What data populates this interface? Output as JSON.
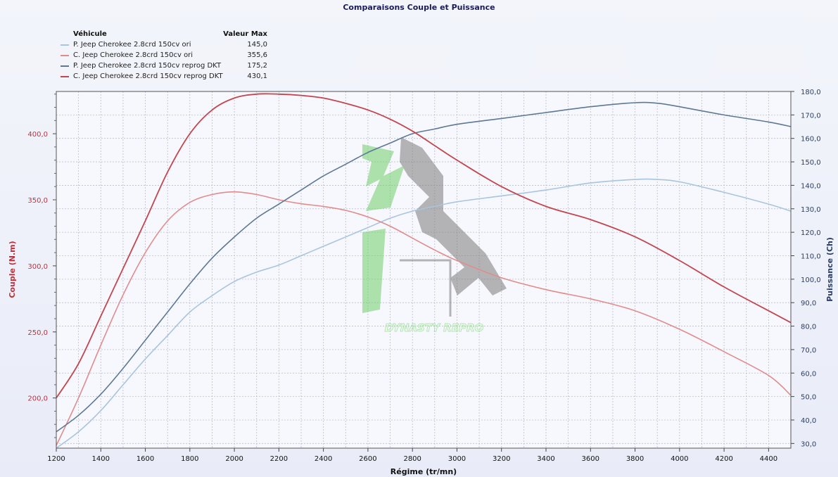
{
  "chart_data": {
    "type": "line",
    "title": "Comparaisons Couple et Puissance",
    "xlabel": "Régime (tr/mn)",
    "ylabel_left": "Couple (N.m)",
    "ylabel_right": "Puissance (Ch)",
    "xlim": [
      1200,
      4500
    ],
    "ylim_left": [
      162,
      432
    ],
    "ylim_right": [
      28,
      180
    ],
    "x_ticks": [
      "1200",
      "1400",
      "1600",
      "1800",
      "2000",
      "2200",
      "2400",
      "2600",
      "2800",
      "3000",
      "3200",
      "3400",
      "3600",
      "3800",
      "4000",
      "4200",
      "4400"
    ],
    "y_left_ticks": [
      "200,0",
      "250,0",
      "300,0",
      "350,0",
      "400,0"
    ],
    "y_right_ticks": [
      "30,0",
      "40,0",
      "50,0",
      "60,0",
      "70,0",
      "80,0",
      "90,0",
      "100,0",
      "110,0",
      "120,0",
      "130,0",
      "140,0",
      "150,0",
      "160,0",
      "170,0",
      "180,0"
    ],
    "legend": {
      "header_vehicle": "Véhicule",
      "header_value": "Valeur Max",
      "entries": [
        {
          "label": "P. Jeep Cherokee 2.8crd 150cv ori",
          "value": "145,0",
          "color": "#a8c4e0"
        },
        {
          "label": "C. Jeep Cherokee 2.8crd 150cv ori",
          "value": "355,6",
          "color": "#e28b8b"
        },
        {
          "label": "P. Jeep Cherokee 2.8crd 150cv reprog DKT",
          "value": "175,2",
          "color": "#5d7896"
        },
        {
          "label": "C. Jeep Cherokee 2.8crd 150cv reprog DKT",
          "value": "430,1",
          "color": "#c4454d"
        }
      ]
    },
    "series": [
      {
        "axis": "right",
        "color": "#a8c4e0",
        "width": 1.6,
        "x": [
          1200,
          1300,
          1400,
          1500,
          1600,
          1700,
          1800,
          1900,
          2000,
          2100,
          2200,
          2300,
          2400,
          2500,
          2600,
          2700,
          2800,
          2900,
          3000,
          3200,
          3400,
          3600,
          3800,
          3900,
          4000,
          4200,
          4400,
          4500
        ],
        "y": [
          28,
          35,
          44,
          55,
          66,
          76,
          86,
          93,
          99,
          103,
          106,
          110,
          114,
          118,
          122,
          126,
          129,
          131,
          133,
          135.5,
          138,
          141,
          142.5,
          142.5,
          141.5,
          137,
          132,
          129
        ]
      },
      {
        "axis": "left",
        "color": "#e28b8b",
        "width": 1.6,
        "x": [
          1200,
          1300,
          1400,
          1500,
          1600,
          1700,
          1800,
          1900,
          2000,
          2100,
          2200,
          2300,
          2400,
          2500,
          2600,
          2700,
          2800,
          2900,
          3000,
          3200,
          3400,
          3600,
          3800,
          4000,
          4200,
          4400,
          4500
        ],
        "y": [
          164,
          200,
          240,
          278,
          310,
          334,
          348,
          354,
          356,
          354,
          350,
          347,
          345,
          342,
          337,
          330,
          321,
          312,
          304,
          291,
          282,
          275,
          266,
          252,
          235,
          217,
          202
        ]
      },
      {
        "axis": "right",
        "color": "#5d7896",
        "width": 1.6,
        "x": [
          1200,
          1300,
          1400,
          1500,
          1600,
          1700,
          1800,
          1900,
          2000,
          2100,
          2200,
          2300,
          2400,
          2500,
          2600,
          2700,
          2800,
          2900,
          3000,
          3200,
          3400,
          3600,
          3800,
          3900,
          4000,
          4200,
          4400,
          4500
        ],
        "y": [
          35,
          42,
          51,
          62,
          74,
          86,
          98,
          109,
          118,
          126,
          132,
          138,
          144,
          149,
          154,
          158,
          162,
          164,
          166,
          168.5,
          171,
          173.5,
          175.2,
          175,
          173.5,
          170,
          167,
          165
        ]
      },
      {
        "axis": "left",
        "color": "#c4454d",
        "width": 1.8,
        "x": [
          1200,
          1300,
          1400,
          1500,
          1600,
          1700,
          1800,
          1900,
          2000,
          2100,
          2200,
          2300,
          2400,
          2500,
          2600,
          2700,
          2800,
          2900,
          3000,
          3200,
          3400,
          3600,
          3800,
          4000,
          4200,
          4400,
          4500
        ],
        "y": [
          200,
          226,
          262,
          298,
          334,
          371,
          400,
          418,
          427,
          430,
          430,
          429,
          427,
          423,
          418,
          411,
          402,
          391,
          380,
          360,
          345,
          335,
          322,
          304,
          284,
          266,
          257
        ]
      }
    ]
  },
  "watermark": {
    "text": "DYNASTY REPRO"
  }
}
